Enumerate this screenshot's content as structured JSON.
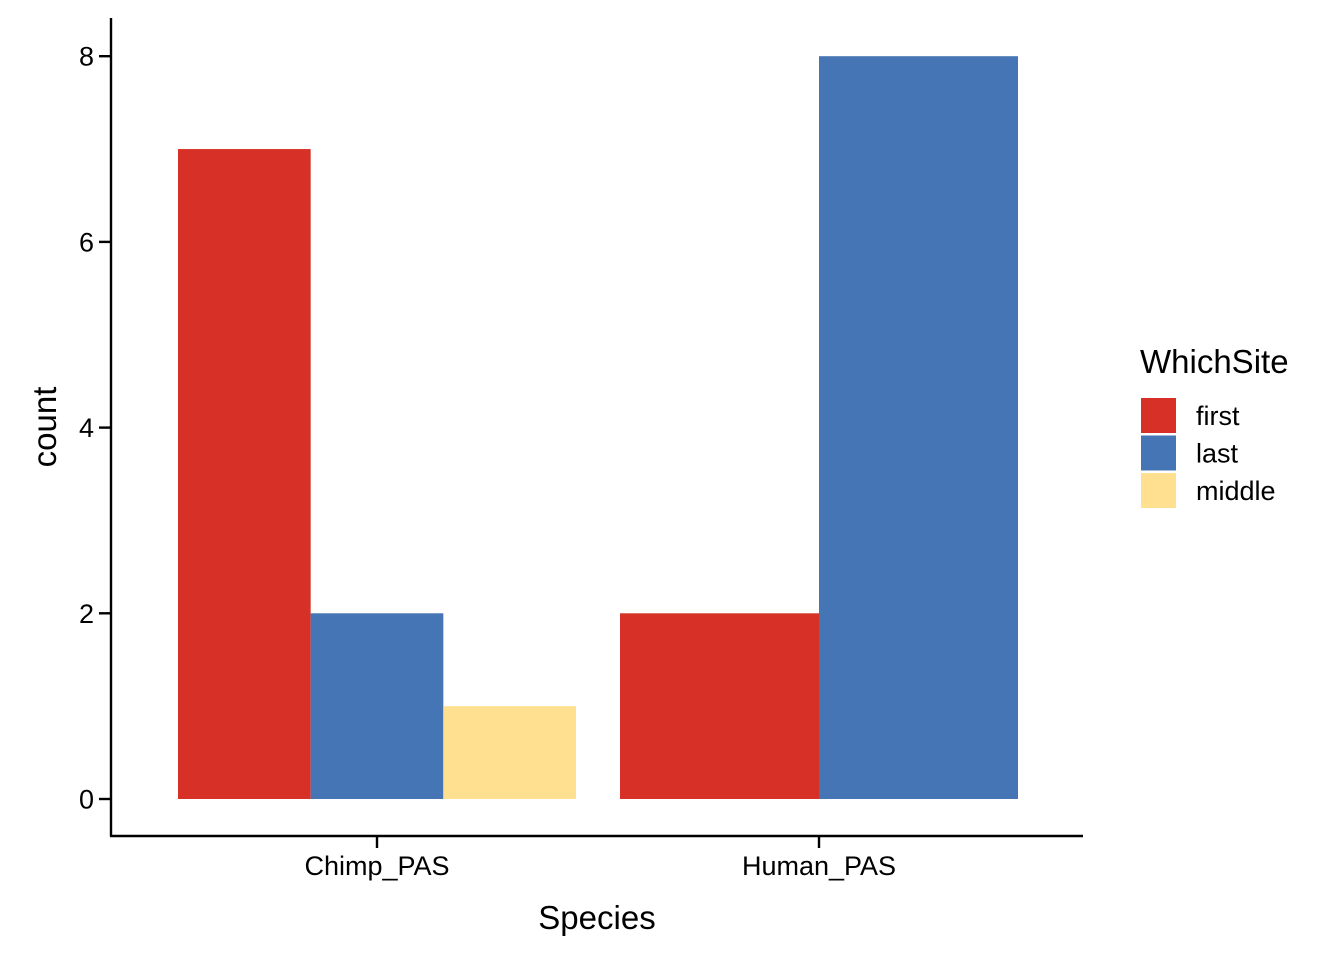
{
  "chart_data": {
    "type": "bar",
    "title": "",
    "xlabel": "Species",
    "ylabel": "count",
    "ylim": [
      0,
      8.4
    ],
    "yticks": [
      0,
      2,
      4,
      6,
      8
    ],
    "categories": [
      "Chimp_PAS",
      "Human_PAS"
    ],
    "legend": {
      "title": "WhichSite",
      "position": "right"
    },
    "grid": false,
    "series": [
      {
        "name": "first",
        "color": "#d73027",
        "values": [
          7,
          2
        ]
      },
      {
        "name": "last",
        "color": "#4575b4",
        "values": [
          2,
          8
        ]
      },
      {
        "name": "middle",
        "color": "#fee090",
        "values": [
          1,
          null
        ]
      }
    ]
  }
}
